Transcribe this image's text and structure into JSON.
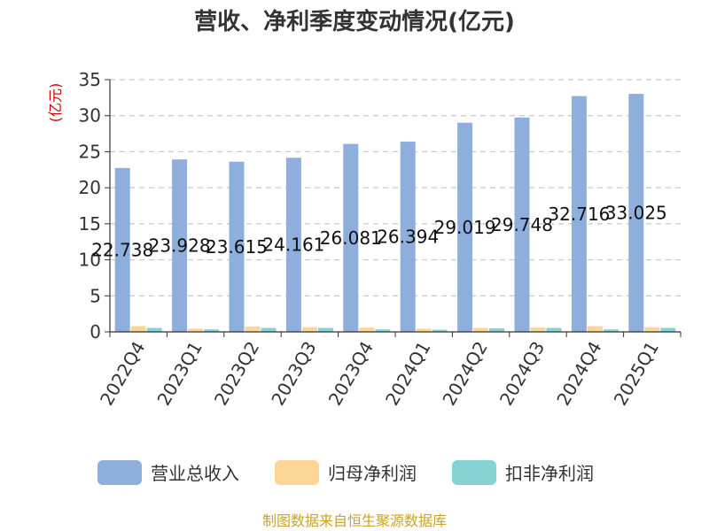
{
  "chart_data": {
    "type": "bar",
    "title": "营收、净利季度变动情况(亿元)",
    "ylabel": "(亿元)",
    "xlabel": "",
    "categories": [
      "2022Q4",
      "2023Q1",
      "2023Q2",
      "2023Q3",
      "2023Q4",
      "2024Q1",
      "2024Q2",
      "2024Q3",
      "2024Q4",
      "2025Q1"
    ],
    "ylim": [
      0,
      35
    ],
    "yticks": [
      0,
      5,
      10,
      15,
      20,
      25,
      30,
      35
    ],
    "grid": true,
    "legend_position": "bottom",
    "series": [
      {
        "name": "营业总收入",
        "color": "#8eaedb",
        "values": [
          22.738,
          23.928,
          23.615,
          24.161,
          26.081,
          26.394,
          29.019,
          29.748,
          32.716,
          33.025
        ],
        "labels": [
          "22.738",
          "23.928",
          "23.615",
          "24.161",
          "26.081",
          "26.394",
          "29.019",
          "29.748",
          "32.716",
          "33.025"
        ]
      },
      {
        "name": "归母净利润",
        "color": "#fdd594",
        "values": [
          0.8,
          0.45,
          0.75,
          0.65,
          0.6,
          0.45,
          0.55,
          0.6,
          0.8,
          0.65
        ]
      },
      {
        "name": "扣非净利润",
        "color": "#86d3d6",
        "values": [
          0.55,
          0.35,
          0.55,
          0.55,
          0.35,
          0.3,
          0.5,
          0.55,
          0.35,
          0.55
        ]
      }
    ]
  },
  "footer": {
    "source": "制图数据来自恒生聚源数据库"
  }
}
